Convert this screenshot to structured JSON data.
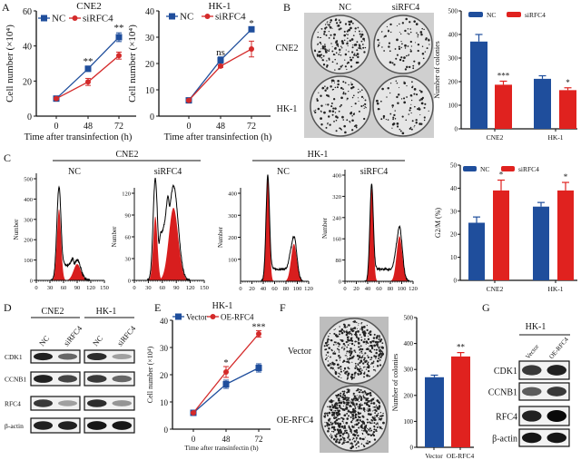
{
  "panel_letters": [
    "A",
    "B",
    "C",
    "D",
    "E",
    "F",
    "G"
  ],
  "colors": {
    "nc": "#1f4e9c",
    "si": "#e0221f",
    "histogram_fill": "#d81e1e",
    "histogram_outline": "#000000"
  },
  "panel_b": {
    "columns": [
      "NC",
      "siRFC4"
    ],
    "rows": [
      "CNE2",
      "HK-1"
    ]
  },
  "panel_c": {
    "groups": [
      "CNE2",
      "HK-1"
    ]
  },
  "panel_d": {
    "groups": [
      {
        "name": "CNE2",
        "lanes": [
          "NC",
          "siRFC4"
        ]
      },
      {
        "name": "HK-1",
        "lanes": [
          "NC",
          "siRFC4"
        ]
      }
    ],
    "rows": [
      "CDK1",
      "CCNB1",
      "RFC4",
      "β-actin"
    ],
    "band_intensity": {
      "CNE2": [
        [
          0.9,
          0.6
        ],
        [
          0.9,
          0.75
        ],
        [
          0.8,
          0.35
        ],
        [
          0.9,
          0.9
        ]
      ],
      "HK-1": [
        [
          0.85,
          0.35
        ],
        [
          0.8,
          0.6
        ],
        [
          0.85,
          0.4
        ],
        [
          0.95,
          0.95
        ]
      ]
    }
  },
  "panel_f": {
    "rows": [
      "Vector",
      "OE-RFC4"
    ]
  },
  "panel_g": {
    "group": "HK-1",
    "lanes": [
      "Vector",
      "OE-RFC4"
    ],
    "rows": [
      "CDK1",
      "CCNB1",
      "RFC4",
      "β-actin"
    ],
    "band_intensity": [
      [
        0.8,
        0.9
      ],
      [
        0.65,
        0.8
      ],
      [
        0.9,
        1.0
      ],
      [
        0.95,
        0.95
      ]
    ]
  },
  "chart_data": [
    {
      "type": "line",
      "panel": "A",
      "title": "CNE2",
      "xlabel": "Time after transinfection (h)",
      "ylabel": "Cell number (×10⁴)",
      "x": [
        "0",
        "48",
        "72"
      ],
      "ylim": [
        0,
        60
      ],
      "yticks": [
        "0",
        "20",
        "40",
        "60"
      ],
      "series": [
        {
          "name": "NC",
          "color": "#1f4e9c",
          "marker": "square",
          "values": [
            10,
            27,
            45
          ],
          "err": [
            0.5,
            1.5,
            2.5
          ]
        },
        {
          "name": "siRFC4",
          "color": "#d42a2a",
          "marker": "diamond",
          "values": [
            10,
            19.5,
            34.5
          ],
          "err": [
            0.5,
            2,
            2
          ]
        }
      ],
      "annotations": [
        {
          "x_index": 1,
          "text": "**"
        },
        {
          "x_index": 2,
          "text": "**"
        }
      ]
    },
    {
      "type": "line",
      "panel": "A",
      "title": "HK-1",
      "xlabel": "Time after transinfection (h)",
      "ylabel": "Cell number (×10⁴)",
      "x": [
        "0",
        "48",
        "72"
      ],
      "ylim": [
        0,
        40
      ],
      "yticks": [
        "0",
        "10",
        "20",
        "30",
        "40"
      ],
      "series": [
        {
          "name": "NC",
          "color": "#1f4e9c",
          "marker": "square",
          "values": [
            6,
            21.3,
            33
          ],
          "err": [
            0.3,
            1.2,
            0.5
          ]
        },
        {
          "name": "siRFC4",
          "color": "#d42a2a",
          "marker": "diamond",
          "values": [
            6,
            19,
            25.5
          ],
          "err": [
            0.3,
            0.5,
            3
          ]
        }
      ],
      "annotations": [
        {
          "x_index": 1,
          "text": "ns"
        },
        {
          "x_index": 2,
          "text": "*"
        }
      ]
    },
    {
      "type": "bar",
      "panel": "B",
      "ylabel": "Number of colonies",
      "categories": [
        "CNE2",
        "HK-1"
      ],
      "ylim": [
        0,
        500
      ],
      "yticks": [
        "0",
        "100",
        "200",
        "300",
        "400",
        "500"
      ],
      "legend": "top",
      "series": [
        {
          "name": "NC",
          "color": "#1f4e9c",
          "values": [
            370,
            212
          ],
          "err": [
            30,
            13
          ]
        },
        {
          "name": "siRFC4",
          "color": "#e0221f",
          "values": [
            187,
            164
          ],
          "err": [
            15,
            10
          ]
        }
      ],
      "annotations": [
        {
          "category": 0,
          "series": 1,
          "text": "***"
        },
        {
          "category": 1,
          "series": 1,
          "text": "*"
        }
      ]
    },
    {
      "type": "histogram",
      "panel": "C",
      "title": "NC",
      "group": "CNE2",
      "ylabel": "Number",
      "xlim": [
        0,
        150
      ],
      "ylim": [
        0,
        500
      ],
      "xticks": [
        "0",
        "30",
        "60",
        "90",
        "120",
        "150"
      ],
      "yticks": [
        "0",
        "100",
        "200",
        "300",
        "400",
        "500"
      ],
      "g1": {
        "channel": 50,
        "fit_peak": 350,
        "observed_peak": 460
      },
      "g2": {
        "channel": 90,
        "fit_peak": 80,
        "observed_peak": 100
      },
      "s_phase_level": 70
    },
    {
      "type": "histogram",
      "panel": "C",
      "title": "siRFC4",
      "group": "CNE2",
      "ylabel": "Number",
      "xlim": [
        0,
        150
      ],
      "ylim": [
        0,
        145
      ],
      "xticks": [
        "0",
        "30",
        "60",
        "90",
        "120",
        "150"
      ],
      "yticks": [
        "0",
        "30",
        "60",
        "90",
        "120"
      ],
      "g1": {
        "channel": 45,
        "fit_peak": 88,
        "observed_peak": 140
      },
      "g2": {
        "channel": 84,
        "fit_peak": 100,
        "observed_peak": 130
      },
      "s_phase_level": 60
    },
    {
      "type": "histogram",
      "panel": "C",
      "title": "NC",
      "group": "HK-1",
      "ylabel": "Number",
      "xlim": [
        0,
        120
      ],
      "ylim": [
        0,
        480
      ],
      "xticks": [
        "0",
        "20",
        "40",
        "60",
        "80",
        "100",
        "120"
      ],
      "yticks": [
        "100",
        "200",
        "300",
        "400"
      ],
      "g1": {
        "channel": 48,
        "fit_peak": 465,
        "observed_peak": 480
      },
      "g2": {
        "channel": 94,
        "fit_peak": 170,
        "observed_peak": 205
      },
      "s_phase_level": 55
    },
    {
      "type": "histogram",
      "panel": "C",
      "title": "siRFC4",
      "group": "HK-1",
      "ylabel": "Number",
      "xlim": [
        0,
        120
      ],
      "ylim": [
        0,
        400
      ],
      "xticks": [
        "0",
        "20",
        "40",
        "60",
        "80",
        "100",
        "120"
      ],
      "yticks": [
        "0",
        "80",
        "160",
        "240",
        "320",
        "400"
      ],
      "g1": {
        "channel": 47,
        "fit_peak": 350,
        "observed_peak": 365
      },
      "g2": {
        "channel": 96,
        "fit_peak": 170,
        "observed_peak": 205
      },
      "s_phase_level": 45
    },
    {
      "type": "bar",
      "panel": "C",
      "ylabel": "G2/M (%)",
      "categories": [
        "CNE2",
        "HK-1"
      ],
      "ylim": [
        0,
        50
      ],
      "yticks": [
        "0",
        "10",
        "20",
        "30",
        "40",
        "50"
      ],
      "legend": "top",
      "series": [
        {
          "name": "NC",
          "color": "#1f4e9c",
          "values": [
            25,
            32
          ],
          "err": [
            2.5,
            1.8
          ]
        },
        {
          "name": "siRFC4",
          "color": "#e0221f",
          "values": [
            39,
            39
          ],
          "err": [
            4.5,
            3.5
          ]
        }
      ],
      "annotations": [
        {
          "category": 0,
          "series": 1,
          "text": "*"
        },
        {
          "category": 1,
          "series": 1,
          "text": "*"
        }
      ]
    },
    {
      "type": "line",
      "panel": "E",
      "title": "HK-1",
      "xlabel": "Time after transinfectin (h)",
      "ylabel": "Cell number (×10⁴)",
      "x": [
        "0",
        "48",
        "72"
      ],
      "ylim": [
        0,
        40
      ],
      "yticks": [
        "0",
        "10",
        "20",
        "30",
        "40"
      ],
      "series": [
        {
          "name": "Vector",
          "color": "#1f4e9c",
          "marker": "square",
          "values": [
            6,
            16.5,
            22.5
          ],
          "err": [
            0.3,
            1.5,
            1.5
          ]
        },
        {
          "name": "OE-RFC4",
          "color": "#d42a2a",
          "marker": "diamond",
          "values": [
            6,
            21,
            35
          ],
          "err": [
            0.3,
            2,
            1.2
          ]
        }
      ],
      "annotations": [
        {
          "x_index": 1,
          "text": "*"
        },
        {
          "x_index": 2,
          "text": "***"
        }
      ]
    },
    {
      "type": "bar",
      "panel": "F",
      "ylabel": "Number of colonies",
      "categories": [
        "Vector",
        "OE-RFC4"
      ],
      "ylim": [
        0,
        500
      ],
      "yticks": [
        "0",
        "100",
        "200",
        "300",
        "400",
        "500"
      ],
      "series": [
        {
          "name": "",
          "colors": [
            "#1f4e9c",
            "#e0221f"
          ],
          "values": [
            270,
            350
          ],
          "err": [
            8,
            15
          ]
        }
      ],
      "annotations": [
        {
          "category": 1,
          "text": "**"
        }
      ]
    }
  ]
}
